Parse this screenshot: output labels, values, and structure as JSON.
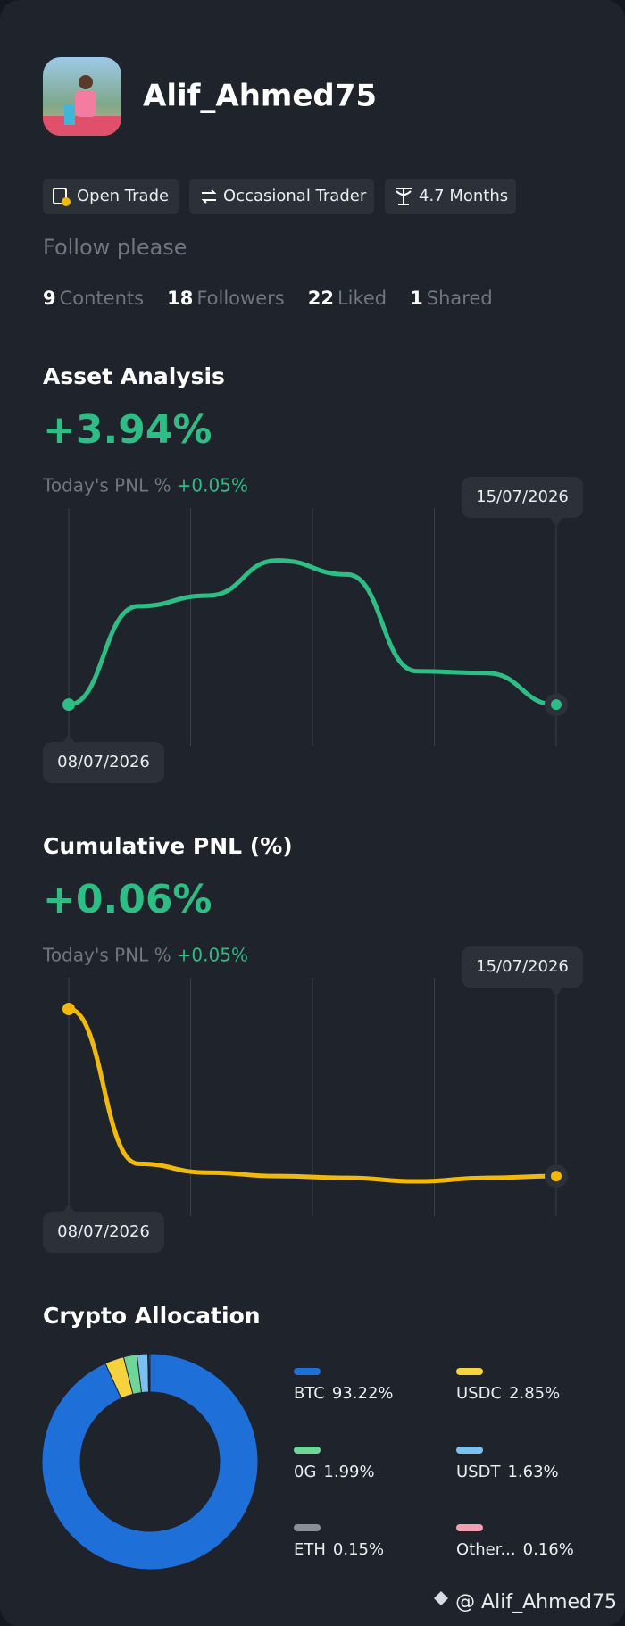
{
  "profile": {
    "name": "Alif_Ahmed75",
    "tags": [
      "Open Trade",
      "Occasional Trader",
      "4.7 Months"
    ],
    "bio": "Follow please",
    "stats": [
      {
        "count": "9",
        "label": "Contents"
      },
      {
        "count": "18",
        "label": "Followers"
      },
      {
        "count": "22",
        "label": "Liked"
      },
      {
        "count": "1",
        "label": "Shared"
      }
    ],
    "watermark": "@ Alif_Ahmed75"
  },
  "chart_data": [
    {
      "type": "line",
      "title": "Asset Analysis",
      "headline": "+3.94%",
      "subtitle": "Today's PNL %",
      "subtitle_value": "+0.05%",
      "categories": [
        "08/07/2026",
        null,
        null,
        null,
        null,
        null,
        null,
        "15/07/2026"
      ],
      "values": [
        6,
        62,
        68,
        88,
        80,
        25,
        24,
        6
      ],
      "color": "#2ebd85",
      "ylim": [
        0,
        100
      ],
      "grid": true
    },
    {
      "type": "line",
      "title": "Cumulative PNL (%)",
      "headline": "+0.06%",
      "subtitle": "Today's PNL %",
      "subtitle_value": "+0.05%",
      "categories": [
        "08/07/2026",
        null,
        null,
        null,
        null,
        null,
        null,
        "15/07/2026"
      ],
      "values": [
        100,
        12,
        7,
        5,
        4,
        2,
        4,
        5
      ],
      "color": "#f0b90b",
      "ylim": [
        0,
        100
      ],
      "grid": true
    },
    {
      "type": "pie",
      "title": "Crypto Allocation",
      "categories": [
        "BTC",
        "USDC",
        "0G",
        "USDT",
        "ETH",
        "Other..."
      ],
      "values": [
        93.22,
        2.85,
        1.99,
        1.63,
        0.15,
        0.16
      ],
      "value_labels": [
        "93.22%",
        "2.85%",
        "1.99%",
        "1.63%",
        "0.15%",
        "0.16%"
      ],
      "colors": [
        "#1f6fd8",
        "#f5d33f",
        "#6fd69a",
        "#7cc0f0",
        "#8a8f99",
        "#f0a0b0"
      ]
    }
  ]
}
